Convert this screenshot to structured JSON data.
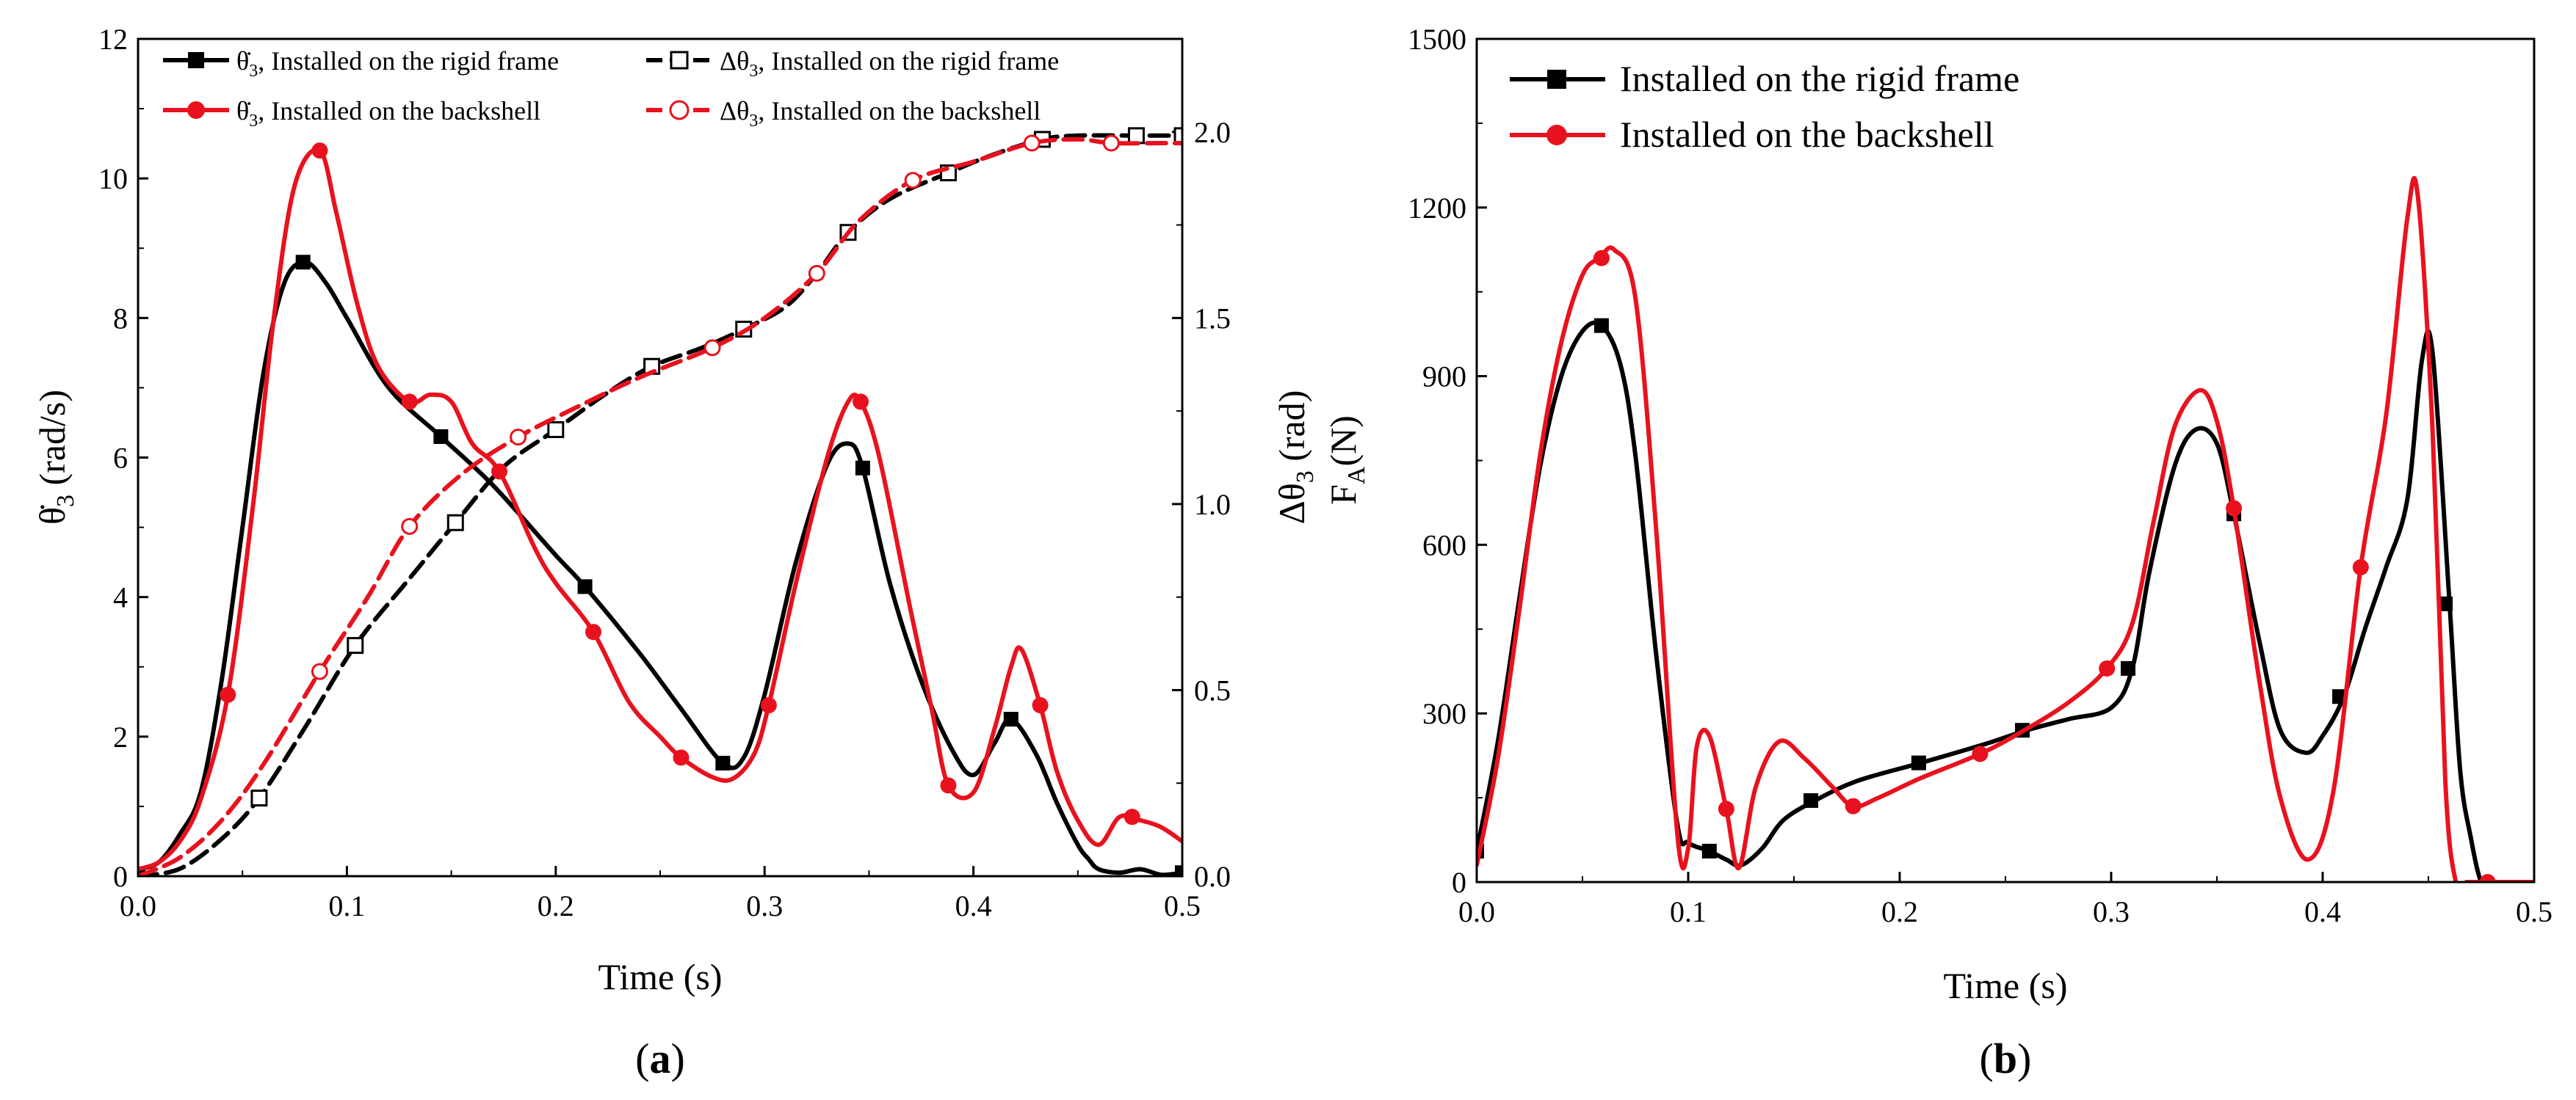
{
  "figure": {
    "panel_labels": {
      "left": "(",
      "bold": "a",
      "right": ")"
    },
    "panel_labels_b": {
      "left": "(",
      "bold": "b",
      "right": ")"
    }
  },
  "colors": {
    "black_series": "#000000",
    "red_series": "#e8121e",
    "axis": "#000000"
  },
  "chart_data": [
    {
      "id": "a",
      "type": "line",
      "xlabel": "Time (s)",
      "ylabel": "θ̇3 (rad/s)",
      "ylabel_parts": {
        "sym": "θ̇",
        "sub": "3",
        "unit": " (rad/s)"
      },
      "y2label": "Δθ3 (rad)",
      "y2label_parts": {
        "pre": "Δθ",
        "sub": "3",
        "unit": " (rad)"
      },
      "xlim": [
        0,
        0.5
      ],
      "ylim": [
        0,
        12
      ],
      "y2lim": [
        0,
        2.25
      ],
      "xticks": [
        0.0,
        0.1,
        0.2,
        0.3,
        0.4,
        0.5
      ],
      "xtick_labels": [
        "0.0",
        "0.1",
        "0.2",
        "0.3",
        "0.4",
        "0.5"
      ],
      "yticks": [
        0,
        2,
        4,
        6,
        8,
        10,
        12
      ],
      "ytick_labels": [
        "0",
        "2",
        "4",
        "6",
        "8",
        "10",
        "12"
      ],
      "y2ticks": [
        0.0,
        0.5,
        1.0,
        1.5,
        2.0
      ],
      "y2tick_labels": [
        "0.0",
        "0.5",
        "1.0",
        "1.5",
        "2.0"
      ],
      "series": [
        {
          "name": "θ̇3, Installed on the rigid frame",
          "legend": {
            "sym": "θ̇",
            "sub": "3",
            "text": ", Installed on the rigid frame"
          },
          "color": "#000000",
          "marker": "square-filled",
          "axis": "left",
          "dash": false,
          "x": [
            0,
            0.01,
            0.02,
            0.03,
            0.04,
            0.05,
            0.06,
            0.07,
            0.08,
            0.09,
            0.1,
            0.12,
            0.145,
            0.17,
            0.2,
            0.214,
            0.24,
            0.26,
            0.28,
            0.29,
            0.3,
            0.315,
            0.33,
            0.34,
            0.347,
            0.36,
            0.375,
            0.39,
            0.4,
            0.41,
            0.418,
            0.43,
            0.44,
            0.45,
            0.455,
            0.46,
            0.47,
            0.48,
            0.49,
            0.5
          ],
          "y": [
            0.1,
            0.2,
            0.6,
            1.2,
            2.8,
            5.0,
            7.2,
            8.5,
            8.8,
            8.5,
            8.0,
            7.0,
            6.3,
            5.6,
            4.6,
            4.15,
            3.2,
            2.4,
            1.62,
            1.7,
            2.6,
            4.5,
            5.9,
            6.2,
            5.85,
            4.2,
            2.8,
            1.8,
            1.45,
            1.9,
            2.25,
            1.75,
            1.05,
            0.45,
            0.25,
            0.1,
            0.05,
            0.1,
            0.02,
            0.05
          ],
          "markers_x": [
            0.0,
            0.079,
            0.145,
            0.214,
            0.28,
            0.347,
            0.418,
            0.5
          ],
          "markers_y": [
            0.0,
            8.8,
            6.3,
            4.15,
            1.62,
            5.85,
            2.25,
            0.05
          ]
        },
        {
          "name": "Δθ3, Installed on the rigid frame",
          "legend": {
            "sym": "Δθ",
            "sub": "3",
            "text": ", Installed on the rigid frame"
          },
          "color": "#000000",
          "marker": "square-open",
          "axis": "right",
          "dash": true,
          "x": [
            0,
            0.02,
            0.04,
            0.058,
            0.08,
            0.104,
            0.13,
            0.152,
            0.175,
            0.2,
            0.225,
            0.246,
            0.27,
            0.29,
            0.31,
            0.325,
            0.34,
            0.36,
            0.388,
            0.41,
            0.433,
            0.45,
            0.478,
            0.5
          ],
          "y": [
            0.0,
            0.02,
            0.1,
            0.21,
            0.4,
            0.62,
            0.8,
            0.95,
            1.1,
            1.2,
            1.3,
            1.37,
            1.42,
            1.47,
            1.53,
            1.62,
            1.73,
            1.82,
            1.89,
            1.94,
            1.98,
            1.99,
            1.99,
            1.99
          ],
          "markers_x": [
            0.058,
            0.104,
            0.152,
            0.2,
            0.246,
            0.29,
            0.34,
            0.388,
            0.433,
            0.478,
            0.5
          ],
          "markers_y": [
            0.21,
            0.62,
            0.95,
            1.2,
            1.37,
            1.47,
            1.73,
            1.89,
            1.98,
            1.99,
            1.99
          ]
        },
        {
          "name": "θ̇3, Installed on the backshell",
          "legend": {
            "sym": "θ̇",
            "sub": "3",
            "text": ", Installed on the backshell"
          },
          "color": "#e8121e",
          "marker": "circle-filled",
          "axis": "left",
          "dash": false,
          "x": [
            0,
            0.01,
            0.02,
            0.03,
            0.043,
            0.055,
            0.065,
            0.075,
            0.087,
            0.095,
            0.105,
            0.115,
            0.13,
            0.14,
            0.15,
            0.16,
            0.173,
            0.19,
            0.2,
            0.218,
            0.235,
            0.25,
            0.26,
            0.275,
            0.285,
            0.295,
            0.302,
            0.315,
            0.33,
            0.34,
            0.346,
            0.355,
            0.37,
            0.38,
            0.388,
            0.4,
            0.41,
            0.418,
            0.423,
            0.432,
            0.44,
            0.45,
            0.46,
            0.47,
            0.48,
            0.49,
            0.5
          ],
          "y": [
            0.1,
            0.2,
            0.5,
            1.1,
            2.6,
            5.3,
            8.0,
            9.9,
            10.4,
            9.5,
            8.2,
            7.3,
            6.8,
            6.9,
            6.8,
            6.2,
            5.8,
            4.7,
            4.2,
            3.5,
            2.5,
            2.0,
            1.7,
            1.42,
            1.4,
            1.75,
            2.45,
            4.2,
            6.0,
            6.8,
            6.8,
            6.0,
            3.8,
            2.4,
            1.3,
            1.2,
            2.1,
            3.0,
            3.25,
            2.45,
            1.5,
            0.8,
            0.45,
            0.85,
            0.8,
            0.7,
            0.5
          ],
          "markers_x": [
            0.043,
            0.087,
            0.13,
            0.173,
            0.218,
            0.26,
            0.302,
            0.346,
            0.388,
            0.432,
            0.476
          ],
          "markers_y": [
            2.6,
            10.4,
            6.8,
            5.8,
            3.5,
            1.7,
            2.45,
            6.8,
            1.3,
            2.45,
            0.85
          ]
        },
        {
          "name": "Δθ3, Installed on the backshell",
          "legend": {
            "sym": "Δθ",
            "sub": "3",
            "text": ", Installed on the backshell"
          },
          "color": "#e8121e",
          "marker": "circle-open",
          "axis": "right",
          "dash": true,
          "x": [
            0,
            0.02,
            0.04,
            0.06,
            0.087,
            0.11,
            0.13,
            0.155,
            0.182,
            0.21,
            0.24,
            0.275,
            0.3,
            0.325,
            0.345,
            0.371,
            0.4,
            0.428,
            0.45,
            0.466,
            0.49,
            0.5
          ],
          "y": [
            0.0,
            0.05,
            0.15,
            0.3,
            0.55,
            0.75,
            0.94,
            1.08,
            1.18,
            1.26,
            1.34,
            1.42,
            1.5,
            1.62,
            1.76,
            1.87,
            1.92,
            1.97,
            1.98,
            1.97,
            1.97,
            1.97
          ],
          "markers_x": [
            0.087,
            0.13,
            0.182,
            0.275,
            0.325,
            0.371,
            0.428,
            0.466
          ],
          "markers_y": [
            0.55,
            0.94,
            1.18,
            1.42,
            1.62,
            1.87,
            1.97,
            1.97
          ]
        }
      ]
    },
    {
      "id": "b",
      "type": "line",
      "xlabel": "Time (s)",
      "ylabel": "FA(N)",
      "ylabel_parts": {
        "sym": "F",
        "sub": "A",
        "unit": "(N)"
      },
      "xlim": [
        0,
        0.5
      ],
      "ylim": [
        0,
        1500
      ],
      "xticks": [
        0.0,
        0.1,
        0.2,
        0.3,
        0.4,
        0.5
      ],
      "xtick_labels": [
        "0.0",
        "0.1",
        "0.2",
        "0.3",
        "0.4",
        "0.5"
      ],
      "yticks": [
        0,
        300,
        600,
        900,
        1200,
        1500
      ],
      "ytick_labels": [
        "0",
        "300",
        "600",
        "900",
        "1200",
        "1500"
      ],
      "series": [
        {
          "name": "Installed on the rigid frame",
          "color": "#000000",
          "marker": "square-filled",
          "dash": false,
          "x": [
            0,
            0.01,
            0.02,
            0.03,
            0.04,
            0.05,
            0.059,
            0.068,
            0.075,
            0.085,
            0.095,
            0.1,
            0.11,
            0.118,
            0.125,
            0.135,
            0.145,
            0.16,
            0.18,
            0.21,
            0.24,
            0.26,
            0.28,
            0.3,
            0.31,
            0.318,
            0.33,
            0.34,
            0.35,
            0.358,
            0.37,
            0.38,
            0.392,
            0.4,
            0.41,
            0.42,
            0.43,
            0.44,
            0.447,
            0.452,
            0.46,
            0.465,
            0.47,
            0.475,
            0.48,
            0.49,
            0.5
          ],
          "y": [
            55,
            250,
            500,
            740,
            900,
            980,
            990,
            920,
            760,
            400,
            100,
            70,
            55,
            40,
            30,
            60,
            110,
            145,
            180,
            212,
            245,
            270,
            290,
            310,
            380,
            550,
            740,
            805,
            780,
            655,
            430,
            270,
            230,
            260,
            330,
            450,
            560,
            680,
            930,
            940,
            495,
            200,
            80,
            0,
            0,
            0,
            0
          ],
          "markers_x": [
            0.0,
            0.059,
            0.11,
            0.158,
            0.209,
            0.258,
            0.308,
            0.358,
            0.408,
            0.458
          ],
          "markers_y": [
            55,
            990,
            55,
            145,
            212,
            270,
            380,
            655,
            330,
            495
          ]
        },
        {
          "name": "Installed on the backshell",
          "color": "#e8121e",
          "marker": "circle-filled",
          "dash": false,
          "x": [
            0,
            0.01,
            0.02,
            0.03,
            0.04,
            0.05,
            0.058,
            0.065,
            0.075,
            0.085,
            0.095,
            0.1,
            0.104,
            0.11,
            0.118,
            0.124,
            0.132,
            0.143,
            0.155,
            0.168,
            0.178,
            0.19,
            0.21,
            0.238,
            0.258,
            0.28,
            0.298,
            0.31,
            0.32,
            0.33,
            0.342,
            0.35,
            0.358,
            0.37,
            0.38,
            0.393,
            0.405,
            0.418,
            0.43,
            0.44,
            0.445,
            0.452,
            0.458,
            0.463,
            0.468,
            0.47,
            0.48,
            0.5
          ],
          "y": [
            30,
            220,
            480,
            760,
            960,
            1080,
            1110,
            1125,
            1040,
            620,
            80,
            60,
            240,
            260,
            130,
            25,
            170,
            250,
            220,
            170,
            135,
            150,
            185,
            228,
            268,
            320,
            380,
            460,
            640,
            810,
            875,
            820,
            665,
            360,
            150,
            40,
            160,
            560,
            830,
            1180,
            1220,
            800,
            180,
            0,
            0,
            0,
            0,
            0
          ],
          "markers_x": [
            0.059,
            0.118,
            0.178,
            0.238,
            0.298,
            0.358,
            0.418,
            0.478
          ],
          "markers_y": [
            1110,
            130,
            135,
            228,
            380,
            665,
            560,
            0
          ]
        }
      ]
    }
  ]
}
